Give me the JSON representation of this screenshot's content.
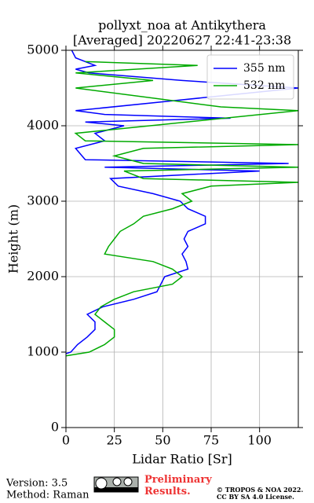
{
  "chart_data": {
    "type": "line",
    "title": "pollyxt_noa at Antikythera",
    "subtitle": "[Averaged] 20220627 22:41-23:38",
    "x_label": "Lidar Ratio [Sr]",
    "y_label": "Height (m)",
    "xlim": [
      0,
      120
    ],
    "xticks": [
      0,
      25,
      50,
      75,
      100
    ],
    "ylim": [
      0,
      5000
    ],
    "yticks": [
      0,
      1000,
      2000,
      3000,
      4000,
      5000
    ],
    "grid": true,
    "legend": "upper right",
    "series": [
      {
        "name": "355 nm",
        "color": "#0000ff",
        "heights": [
          980,
          1000,
          1100,
          1200,
          1300,
          1400,
          1500,
          1600,
          1700,
          1800,
          1900,
          2000,
          2100,
          2200,
          2300,
          2400,
          2500,
          2600,
          2700,
          2800,
          2900,
          3000,
          3100,
          3200,
          3300,
          3400,
          3450,
          3500,
          3550,
          3700,
          3800,
          3900,
          4000,
          4050,
          4100,
          4150,
          4200,
          4500,
          4600,
          4700,
          4750,
          4800,
          4900,
          5000
        ],
        "values": [
          0,
          2.5,
          6,
          11,
          15,
          15,
          11,
          19,
          35,
          47,
          49,
          51,
          63,
          62,
          60,
          63,
          61,
          63,
          72,
          72,
          63,
          59,
          45,
          27,
          23,
          100,
          20,
          115,
          10,
          5,
          20,
          15,
          30,
          10,
          85,
          20,
          5,
          120,
          60,
          12,
          5,
          15,
          5,
          3
        ]
      },
      {
        "name": "532 nm",
        "color": "#00aa00",
        "heights": [
          950,
          1000,
          1100,
          1200,
          1300,
          1400,
          1500,
          1600,
          1700,
          1800,
          1900,
          2000,
          2100,
          2200,
          2300,
          2400,
          2500,
          2600,
          2700,
          2800,
          2900,
          3000,
          3100,
          3200,
          3250,
          3300,
          3400,
          3450,
          3500,
          3600,
          3700,
          3750,
          3800,
          3900,
          4200,
          4250,
          4500,
          4600,
          4700,
          4800,
          4850
        ],
        "values": [
          0,
          12,
          20,
          25,
          25,
          20,
          15,
          18,
          25,
          35,
          55,
          60,
          55,
          45,
          20,
          22,
          25,
          28,
          35,
          40,
          55,
          65,
          60,
          75,
          120,
          40,
          30,
          120,
          40,
          25,
          40,
          120,
          10,
          5,
          120,
          80,
          5,
          45,
          5,
          68,
          10
        ]
      }
    ]
  },
  "footer": {
    "version": "Version: 3.5",
    "method": "Method: Raman",
    "status": "Preliminary Results.",
    "copyright": "© TROPOS & NOA 2022.",
    "license": "CC BY SA 4.0 License."
  }
}
